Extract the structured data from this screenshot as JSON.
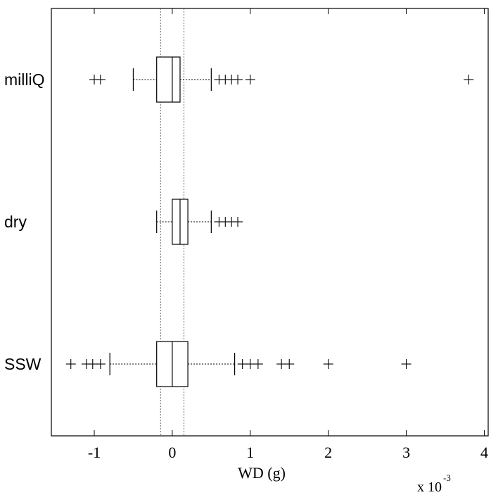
{
  "chart_data": {
    "type": "boxplot",
    "orientation": "horizontal",
    "xlabel": "WD (g)",
    "x_multiplier": "x 10",
    "x_multiplier_exponent": "-3",
    "xlim": [
      -1.55,
      4.05
    ],
    "xticks": [
      {
        "value": -1,
        "label": "-1"
      },
      {
        "value": 0,
        "label": "0"
      },
      {
        "value": 1,
        "label": "1"
      },
      {
        "value": 2,
        "label": "2"
      },
      {
        "value": 3,
        "label": "3"
      },
      {
        "value": 4,
        "label": "4"
      }
    ],
    "reference_lines": [
      -0.15,
      0.15
    ],
    "grid": false,
    "categories": [
      "milliQ",
      "dry",
      "SSW"
    ],
    "boxes": [
      {
        "name": "milliQ",
        "whisker_low": -0.5,
        "q1": -0.2,
        "median": 0.0,
        "q3": 0.1,
        "whisker_high": 0.5,
        "outliers": [
          -1.0,
          -0.92,
          0.6,
          0.68,
          0.76,
          0.84,
          1.0,
          3.8
        ]
      },
      {
        "name": "dry",
        "whisker_low": -0.2,
        "q1": 0.0,
        "median": 0.1,
        "q3": 0.2,
        "whisker_high": 0.5,
        "outliers": [
          0.6,
          0.68,
          0.76,
          0.84
        ]
      },
      {
        "name": "SSW",
        "whisker_low": -0.8,
        "q1": -0.2,
        "median": 0.0,
        "q3": 0.2,
        "whisker_high": 0.8,
        "outliers": [
          -1.3,
          -1.1,
          -1.02,
          -0.92,
          0.9,
          1.0,
          1.1,
          1.4,
          1.5,
          2.0,
          3.0
        ]
      }
    ]
  }
}
